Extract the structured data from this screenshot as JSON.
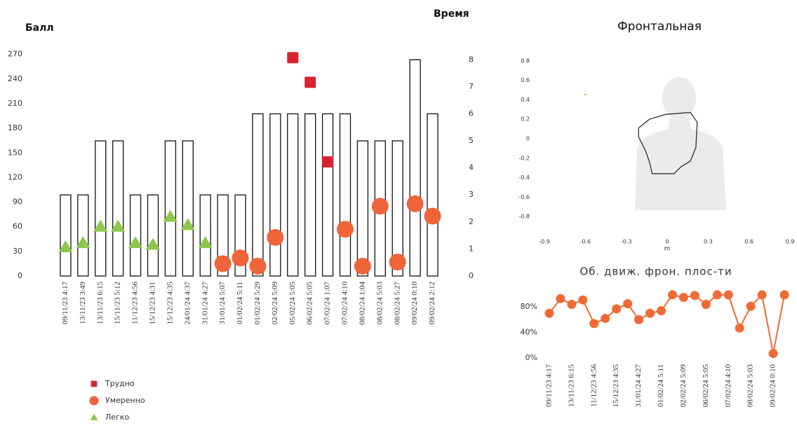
{
  "chart_data": [
    {
      "type": "bar",
      "y_label": "Балл",
      "y2_label": "Время",
      "categories": [
        "09/11/23 4:17",
        "13/11/23 3:49",
        "13/11/23 6:15",
        "15/11/23 5:12",
        "11/12/23 4:56",
        "15/12/23 4:31",
        "15/12/23 4:35",
        "24/01/24 4:37",
        "31/01/24 4:27",
        "31/01/24 5:07",
        "01/02/24 5:11",
        "01/02/24 5:29",
        "02/02/24 5:09",
        "05/02/24 5:05",
        "06/02/24 5:05",
        "07/02/24 1:07",
        "07/02/24 4:10",
        "08/02/24 1:04",
        "08/02/24 5:03",
        "08/02/24 5:27",
        "09/02/24 0:10",
        "09/02/24 2:12"
      ],
      "ylim": [
        0,
        280
      ],
      "yticks": [
        0,
        30,
        60,
        90,
        120,
        150,
        180,
        210,
        240,
        270
      ],
      "y2lim": [
        0,
        8.5
      ],
      "y2ticks": [
        0,
        1,
        2,
        3,
        4,
        5,
        6,
        7,
        8
      ],
      "series": [
        {
          "axis": "y2",
          "marker": "bar",
          "color": "#ffffff",
          "values": [
            3,
            3,
            5,
            5,
            3,
            3,
            5,
            5,
            3,
            3,
            3,
            6,
            6,
            6,
            6,
            6,
            6,
            5,
            5,
            5,
            8,
            6
          ]
        },
        {
          "name": "Трудно",
          "marker": "square",
          "color": "#d9222f",
          "values": [
            null,
            null,
            null,
            null,
            null,
            null,
            null,
            null,
            null,
            null,
            null,
            null,
            null,
            266,
            236,
            139,
            null,
            null,
            null,
            null,
            null,
            null
          ]
        },
        {
          "name": "Умеренно",
          "marker": "circle",
          "color": "#f0643a",
          "values": [
            null,
            null,
            null,
            null,
            null,
            null,
            null,
            null,
            null,
            15,
            22,
            12,
            47,
            null,
            null,
            null,
            57,
            12,
            85,
            17,
            88,
            73
          ]
        },
        {
          "name": "Легко",
          "marker": "triangle",
          "color": "#8cc84b",
          "values": [
            35,
            40,
            60,
            60,
            40,
            38,
            72,
            62,
            40,
            null,
            null,
            null,
            null,
            null,
            null,
            null,
            null,
            null,
            null,
            null,
            null,
            null
          ]
        }
      ]
    },
    {
      "type": "line",
      "title": "Фронтальная",
      "x_label": "m",
      "x": [
        -0.21,
        -0.13,
        -0.01,
        0.17,
        0.22,
        0.21,
        0.17,
        0.1,
        0.05,
        -0.11,
        -0.13,
        -0.16,
        -0.21,
        -0.21
      ],
      "xlim": [
        -0.9,
        0.9
      ],
      "xticks": [
        -0.9,
        -0.6,
        -0.3,
        0,
        0.3,
        0.6,
        0.9
      ],
      "ylim": [
        -0.9,
        0.9
      ],
      "yticks": [
        -0.8,
        -0.6,
        -0.4,
        -0.2,
        0,
        0.2,
        0.4,
        0.6,
        0.8
      ],
      "series": [
        {
          "color": "#222222",
          "values": [
            0.11,
            0.2,
            0.25,
            0.27,
            0.17,
            -0.09,
            -0.23,
            -0.29,
            -0.36,
            -0.36,
            -0.24,
            -0.12,
            0.02,
            0.11
          ]
        }
      ]
    },
    {
      "type": "line",
      "title": "Об. движ. фрон. плос-ти",
      "categories": [
        "09/11/23 4:17",
        null,
        "13/11/23 6:15",
        null,
        "11/12/23 4:56",
        null,
        "15/12/23 4:35",
        null,
        "31/01/24 4:27",
        null,
        "01/02/24 5:11",
        null,
        "02/02/24 5:09",
        null,
        "06/02/24 5:05",
        null,
        "07/02/24 4:10",
        null,
        "08/02/24 5:03",
        null,
        "09/02/24 0:10",
        null
      ],
      "ylim": [
        0,
        100
      ],
      "yticks": [
        {
          "value": 0,
          "label": "0%"
        },
        {
          "value": 40,
          "label": "40%"
        },
        {
          "value": 80,
          "label": "80%"
        }
      ],
      "series": [
        {
          "color": "#f06a35",
          "values": [
            70,
            93,
            84,
            91,
            54,
            62,
            77,
            85,
            60,
            70,
            74,
            99,
            95,
            98,
            84,
            99,
            99,
            47,
            81,
            99,
            7,
            99
          ]
        }
      ]
    }
  ]
}
